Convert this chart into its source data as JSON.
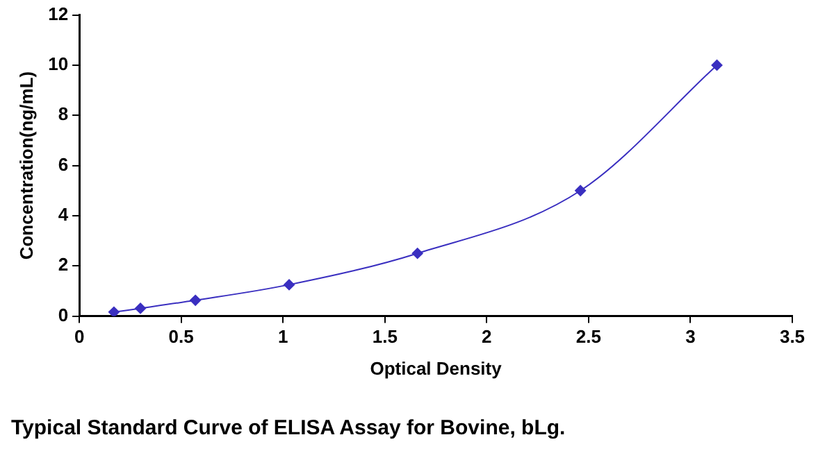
{
  "chart_data": {
    "type": "line",
    "title": "Typical Standard Curve of ELISA Assay for Bovine, bLg.",
    "xlabel": "Optical Density",
    "ylabel": "Concentration(ng/mL)",
    "x": [
      0.17,
      0.3,
      0.57,
      1.03,
      1.66,
      2.46,
      3.13
    ],
    "series": [
      {
        "color": "#3a2fc0",
        "values": [
          0.16,
          0.31,
          0.63,
          1.25,
          2.5,
          5,
          10
        ]
      }
    ],
    "xlim": [
      0,
      3.5
    ],
    "xticks": [
      0,
      0.5,
      1,
      1.5,
      2,
      2.5,
      3,
      3.5
    ],
    "ylim": [
      0,
      12
    ],
    "yticks": [
      0,
      2,
      4,
      6,
      8,
      10,
      12
    ],
    "grid": false,
    "legend": false,
    "marker": "diamond",
    "line_style": "solid"
  }
}
